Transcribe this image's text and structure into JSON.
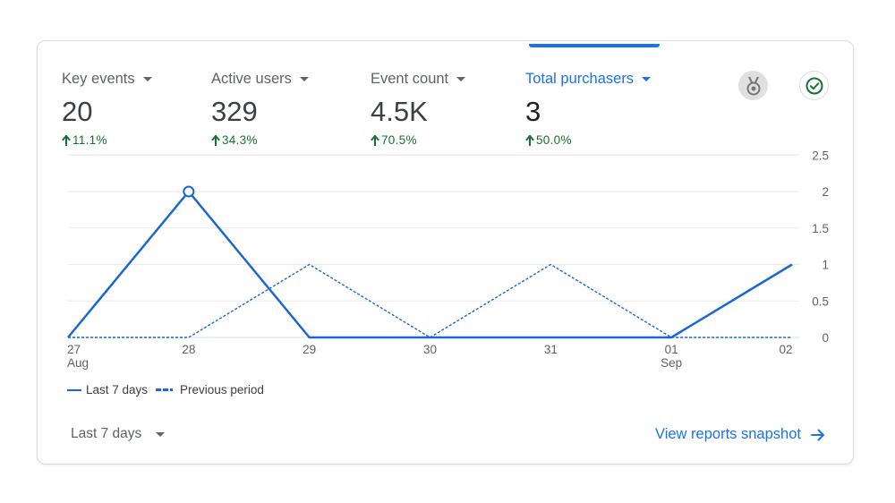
{
  "metrics": [
    {
      "label": "Key events",
      "value": "20",
      "change": "11.1%"
    },
    {
      "label": "Active users",
      "value": "329",
      "change": "34.3%"
    },
    {
      "label": "Event count",
      "value": "4.5K",
      "change": "70.5%"
    },
    {
      "label": "Total purchasers",
      "value": "3",
      "change": "50.0%"
    }
  ],
  "active_metric": "Total purchasers",
  "icons": {
    "badge": "achievement-badge-icon",
    "status": "checkmark-circle-icon",
    "change": "arrow-up-icon",
    "link": "arrow-right-icon"
  },
  "legend": {
    "current": "Last 7 days",
    "previous": "Previous period"
  },
  "period_select": {
    "label": "Last 7 days"
  },
  "footer": {
    "link_label": "View reports snapshot"
  },
  "colors": {
    "accent": "#1a73e8",
    "line": "#1967d2",
    "positive": "#137333",
    "badge_bg": "#e0e0e0",
    "check": "#137333"
  },
  "chart_data": {
    "type": "line",
    "x": [
      "27",
      "28",
      "29",
      "30",
      "31",
      "01",
      "02"
    ],
    "x_sublabels": [
      "Aug",
      "",
      "",
      "",
      "",
      "Sep",
      ""
    ],
    "y_ticks": [
      "0",
      "0.5",
      "1",
      "1.5",
      "2",
      "2.5"
    ],
    "ylim": [
      0,
      2.5
    ],
    "y_axis_side": "right",
    "grid": true,
    "highlight_index": 1,
    "series": [
      {
        "name": "Last 7 days",
        "style": "solid",
        "values": [
          0,
          2,
          0,
          0,
          0,
          0,
          1
        ]
      },
      {
        "name": "Previous period",
        "style": "dashed",
        "values": [
          0,
          0,
          1,
          0,
          1,
          0,
          0
        ]
      }
    ]
  }
}
